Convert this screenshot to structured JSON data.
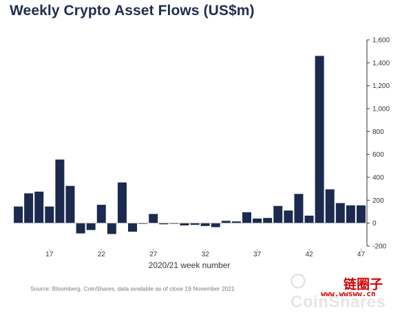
{
  "chart_data": {
    "type": "bar",
    "title": "Weekly Crypto Asset Flows (US$m)",
    "xlabel": "2020/21 week number",
    "ylabel": "",
    "ylim": [
      -200,
      1600
    ],
    "y_ticks": [
      -200,
      0,
      200,
      400,
      600,
      800,
      1000,
      1200,
      1400,
      1600
    ],
    "y_tick_labels": [
      "-200",
      "0",
      "200",
      "400",
      "600",
      "800",
      "1,000",
      "1,200",
      "1,400",
      "1,600"
    ],
    "y_axis_side": "right",
    "x_tick_labels": [
      "17",
      "22",
      "27",
      "32",
      "37",
      "42",
      "47"
    ],
    "x_tick_values": [
      17,
      22,
      27,
      32,
      37,
      42,
      47
    ],
    "categories": [
      14,
      15,
      16,
      17,
      18,
      19,
      20,
      21,
      22,
      23,
      24,
      25,
      26,
      27,
      28,
      29,
      30,
      31,
      32,
      33,
      34,
      35,
      36,
      37,
      38,
      39,
      40,
      41,
      42,
      43,
      44,
      45,
      46,
      47
    ],
    "values": [
      145,
      260,
      275,
      145,
      555,
      325,
      -90,
      -60,
      160,
      -95,
      355,
      -75,
      0,
      80,
      -10,
      -5,
      -20,
      -15,
      -25,
      -35,
      20,
      15,
      95,
      40,
      45,
      150,
      110,
      255,
      65,
      1460,
      295,
      175,
      155,
      155
    ],
    "grid": false,
    "legend": "none",
    "bar_color": "#1b2a4e"
  },
  "footer": {
    "source": "Source: Bloomberg, CoinShares, data available as of close 19 November 2021",
    "watermark": "CoinShares",
    "stamp_cn": "链圈子",
    "stamp_url": "www.wwsww.cn"
  }
}
